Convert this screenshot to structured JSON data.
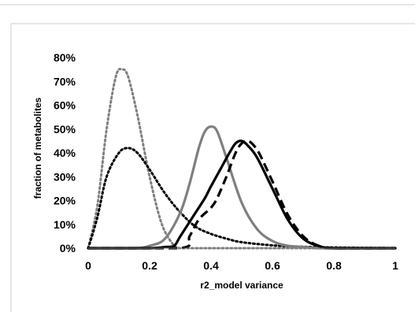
{
  "chart_data": {
    "type": "line",
    "title": "",
    "xlabel": "r2_model variance",
    "ylabel": "fraction of metabolites",
    "xlim": [
      0,
      1
    ],
    "ylim": [
      0,
      0.8
    ],
    "x_ticks": [
      "0",
      "0.2",
      "0.4",
      "0.6",
      "0.8",
      "1"
    ],
    "y_ticks": [
      "0%",
      "10%",
      "20%",
      "30%",
      "40%",
      "50%",
      "60%",
      "70%",
      "80%"
    ],
    "grid": false,
    "legend": "none",
    "series": [
      {
        "style": "gray-dotted",
        "color": "#7f7f7f",
        "x": [
          0,
          0.03,
          0.06,
          0.09,
          0.11,
          0.13,
          0.16,
          0.2,
          0.24,
          0.28,
          0.3,
          0.35,
          0.5,
          1.0
        ],
        "y": [
          0.0,
          0.18,
          0.5,
          0.72,
          0.75,
          0.72,
          0.56,
          0.3,
          0.1,
          0.01,
          0.0,
          0.0,
          0.0,
          0.0
        ]
      },
      {
        "style": "black-dotted",
        "color": "#000000",
        "x": [
          0,
          0.03,
          0.06,
          0.1,
          0.13,
          0.16,
          0.2,
          0.25,
          0.3,
          0.35,
          0.4,
          0.45,
          0.5,
          0.6,
          0.7,
          0.8,
          1.0
        ],
        "y": [
          0.0,
          0.13,
          0.3,
          0.4,
          0.42,
          0.4,
          0.33,
          0.23,
          0.15,
          0.09,
          0.06,
          0.04,
          0.025,
          0.012,
          0.006,
          0.003,
          0.0
        ]
      },
      {
        "style": "gray-solid",
        "color": "#7f7f7f",
        "x": [
          0,
          0.15,
          0.2,
          0.25,
          0.3,
          0.33,
          0.36,
          0.38,
          0.4,
          0.42,
          0.45,
          0.5,
          0.55,
          0.6,
          0.65,
          0.7,
          0.75,
          0.8,
          1.0
        ],
        "y": [
          0.0,
          0.0,
          0.01,
          0.04,
          0.15,
          0.27,
          0.42,
          0.49,
          0.51,
          0.49,
          0.38,
          0.19,
          0.08,
          0.03,
          0.01,
          0.005,
          0.0,
          0.0,
          0.0
        ]
      },
      {
        "style": "black-solid",
        "color": "#000000",
        "x": [
          0,
          0.2,
          0.25,
          0.28,
          0.3,
          0.35,
          0.38,
          0.4,
          0.43,
          0.46,
          0.48,
          0.5,
          0.52,
          0.55,
          0.6,
          0.65,
          0.7,
          0.75,
          0.8,
          1.0
        ],
        "y": [
          0.0,
          0.0,
          0.005,
          0.01,
          0.05,
          0.15,
          0.21,
          0.26,
          0.33,
          0.4,
          0.44,
          0.45,
          0.43,
          0.38,
          0.25,
          0.12,
          0.04,
          0.01,
          0.0,
          0.0
        ]
      },
      {
        "style": "black-dashed",
        "color": "#000000",
        "x": [
          0,
          0.3,
          0.33,
          0.36,
          0.4,
          0.42,
          0.45,
          0.48,
          0.5,
          0.52,
          0.54,
          0.56,
          0.6,
          0.65,
          0.7,
          0.75,
          0.8,
          1.0
        ],
        "y": [
          0.0,
          0.0,
          0.05,
          0.12,
          0.17,
          0.21,
          0.3,
          0.4,
          0.44,
          0.45,
          0.43,
          0.39,
          0.28,
          0.14,
          0.05,
          0.01,
          0.0,
          0.0
        ]
      }
    ]
  }
}
